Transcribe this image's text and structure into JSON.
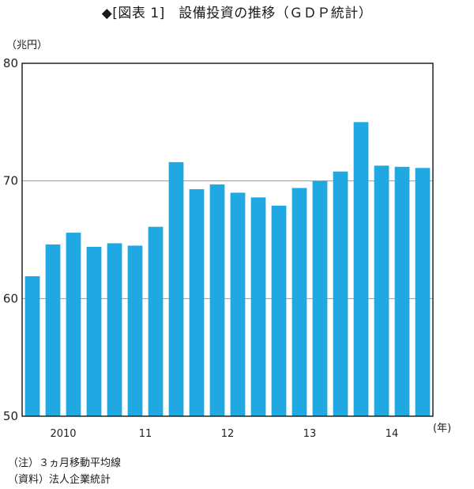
{
  "title": "◆[図表 1]　設備投資の推移（ＧＤＰ統計）",
  "y_unit": "（兆円）",
  "x_unit": "(年)",
  "notes": [
    "（注）３ヵ月移動平均線",
    "（資料）法人企業統計"
  ],
  "colors": {
    "bar": "#1fa8e1",
    "axis": "#222222",
    "grid": "#9a9a9a"
  },
  "chart_data": {
    "type": "bar",
    "title": "◆[図表 1]　設備投資の推移（ＧＤＰ統計）",
    "ylabel": "（兆円）",
    "xlabel": "(年)",
    "ylim": [
      50,
      80
    ],
    "yticks": [
      50,
      60,
      70,
      80
    ],
    "gridlines": [
      60,
      70
    ],
    "x_ticks": [
      {
        "label": "2010",
        "index": 1.5
      },
      {
        "label": "11",
        "index": 5.5
      },
      {
        "label": "12",
        "index": 9.5
      },
      {
        "label": "13",
        "index": 13.5
      },
      {
        "label": "14",
        "index": 17.5
      }
    ],
    "values": [
      61.9,
      64.6,
      65.6,
      64.4,
      64.7,
      64.5,
      66.1,
      71.6,
      69.3,
      69.7,
      69.0,
      68.6,
      67.9,
      69.4,
      70.0,
      70.8,
      75.0,
      71.3,
      71.2,
      71.1
    ]
  }
}
